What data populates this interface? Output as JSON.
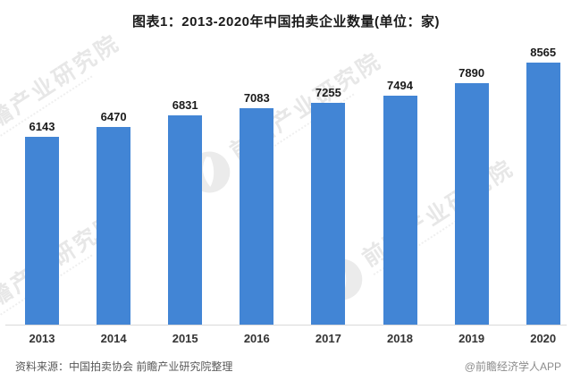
{
  "title": "图表1：2013-2020年中国拍卖企业数量(单位：家)",
  "chart_data": {
    "type": "bar",
    "categories": [
      "2013",
      "2014",
      "2015",
      "2016",
      "2017",
      "2018",
      "2019",
      "2020"
    ],
    "values": [
      6143,
      6470,
      6831,
      7083,
      7255,
      7494,
      7890,
      8565
    ],
    "title": "图表1：2013-2020年中国拍卖企业数量(单位：家)",
    "xlabel": "",
    "ylabel": "",
    "unit": "家",
    "bar_color": "#4285D5",
    "value_labels_shown": true,
    "y_axis_shown": false,
    "grid": false,
    "legend": "none"
  },
  "footer": {
    "source": "资料来源：中国拍卖协会 前瞻产业研究院整理",
    "credit": "@前瞻经济学人APP"
  },
  "watermark": {
    "text": "前瞻产业研究院",
    "logo": "qianzhan-logo"
  }
}
